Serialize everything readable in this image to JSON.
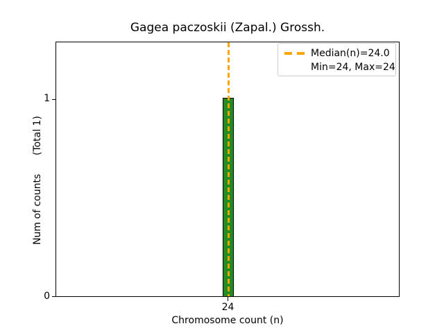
{
  "figure": {
    "background": "#ffffff"
  },
  "chart_data": {
    "type": "bar",
    "title": "Gagea paczoskii (Zapal.) Grossh.",
    "xlabel": "Chromosome count (n)",
    "ylabel": "Num of counts      (Total 1)",
    "categories": [
      24
    ],
    "values": [
      1
    ],
    "total_counts": 1,
    "xticks": [
      "24"
    ],
    "yticks": [
      "0",
      "1"
    ],
    "ylim": [
      0,
      1.29
    ],
    "grid": false,
    "bar_color": "#228B22",
    "bar_edge_color": "#000000",
    "median_line": {
      "value": 24.0,
      "color": "#FFA500",
      "style": "dashed",
      "orientation": "vertical"
    },
    "legend": {
      "position": "upper right",
      "entries": [
        "Median(n)=24.0",
        "Min=24, Max=24"
      ],
      "handle_color": "#FFA500"
    }
  }
}
